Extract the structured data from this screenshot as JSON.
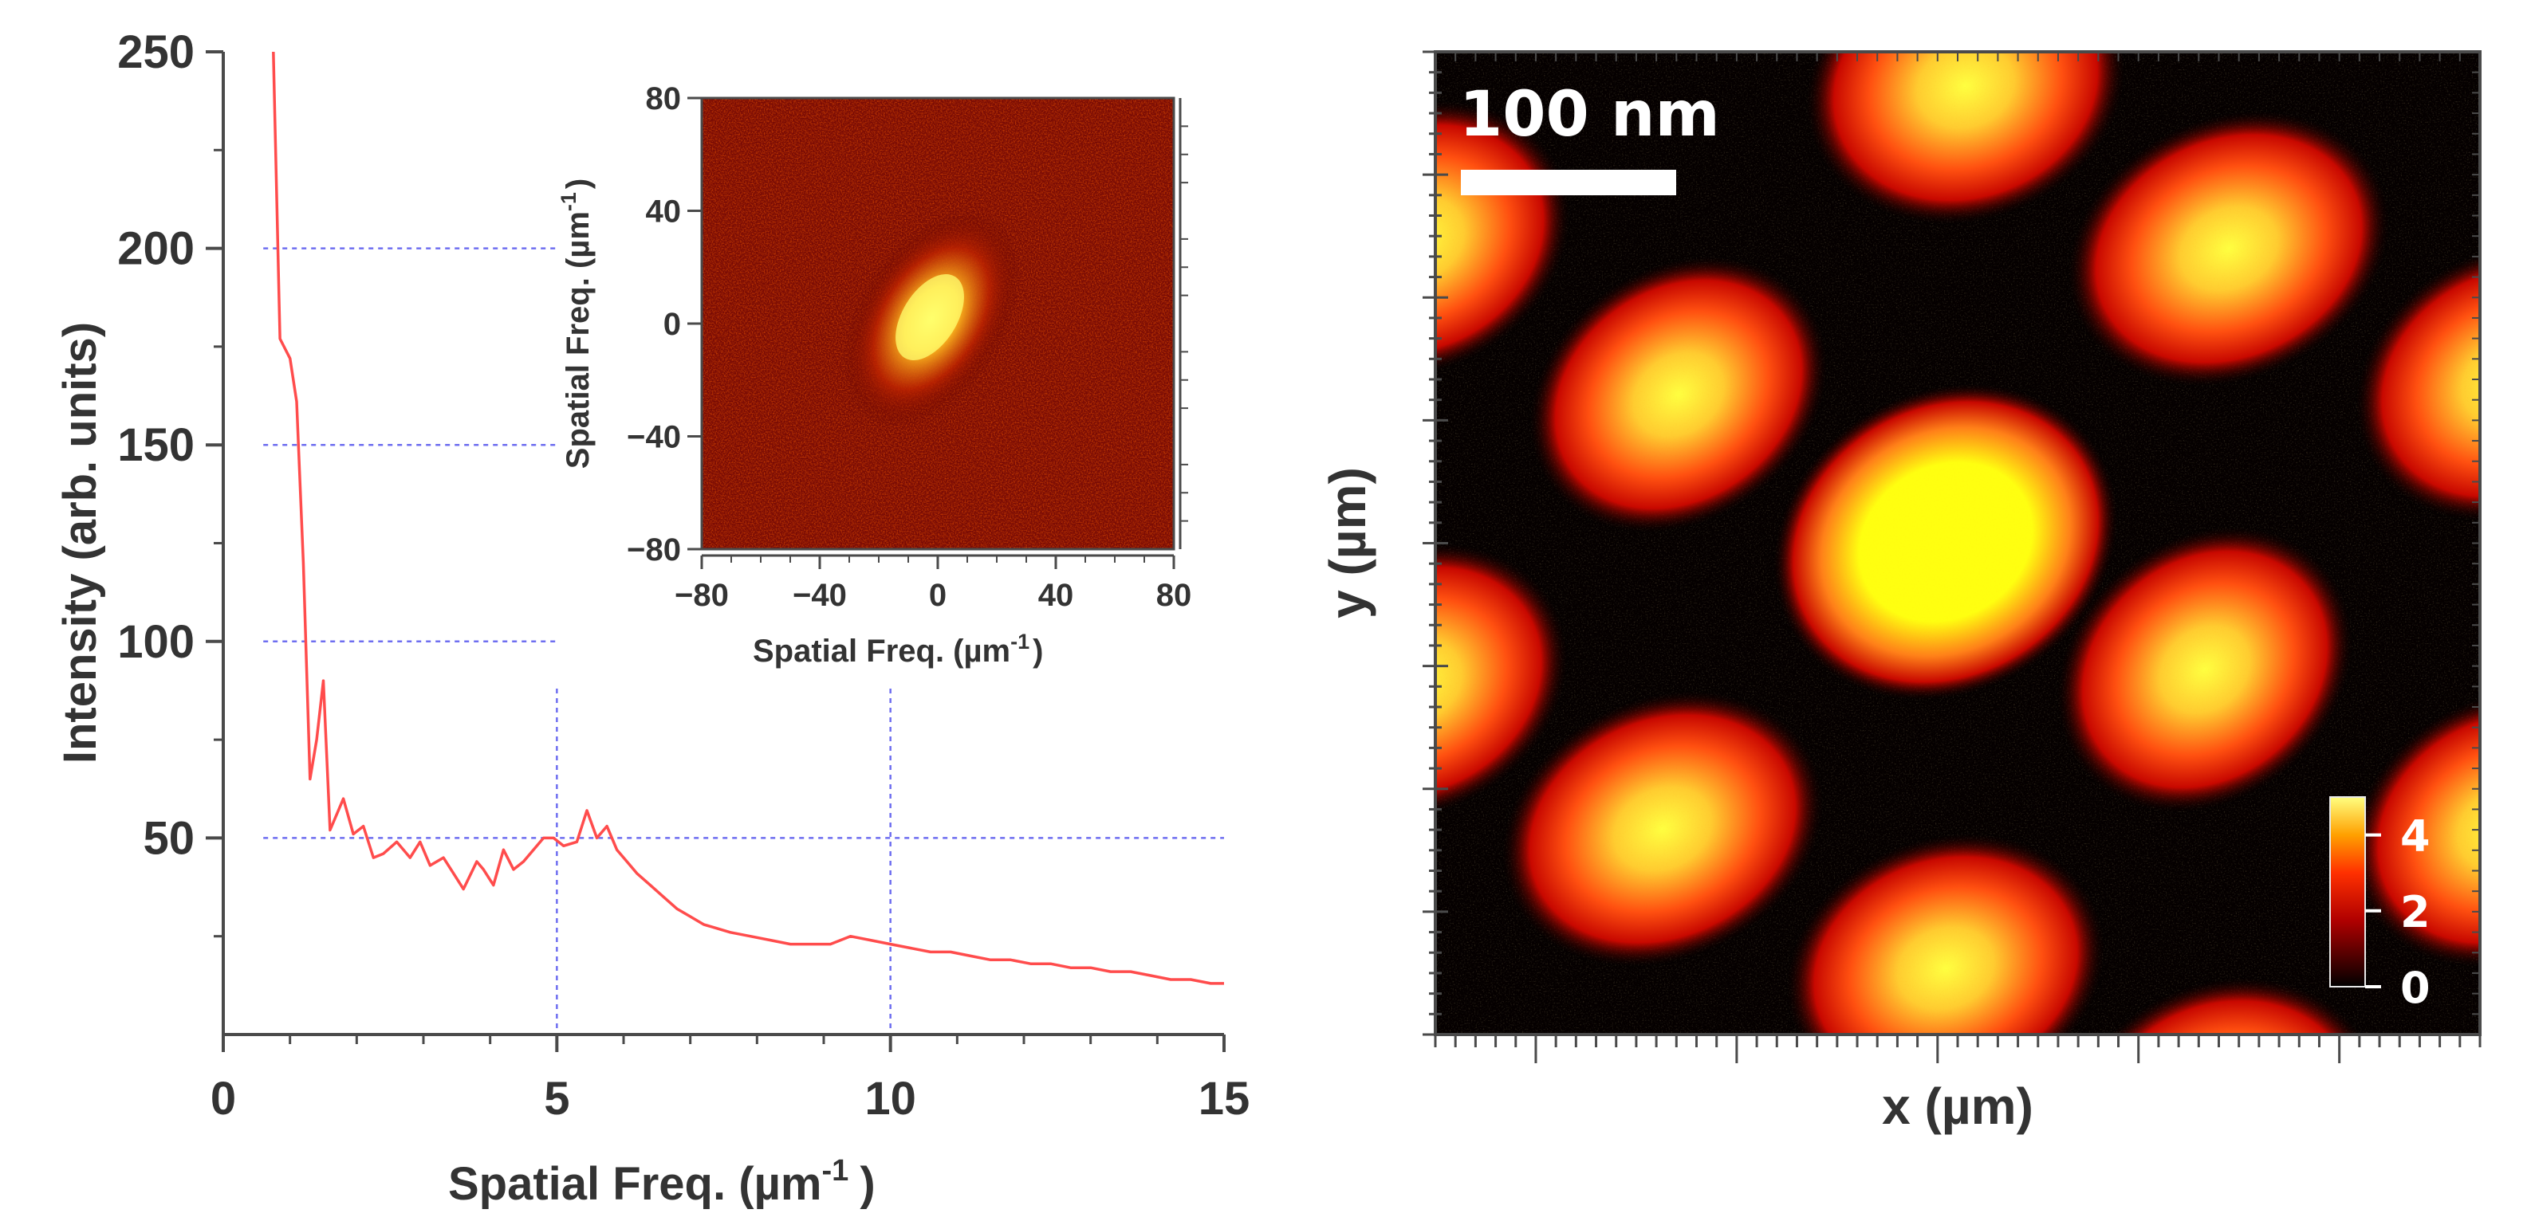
{
  "chart_data": [
    {
      "type": "line",
      "name": "spectrum",
      "xlabel_main": "Spatial Freq. (µm",
      "xlabel_sup": "-1",
      "xlabel_close": ")",
      "ylabel": "Intensity (arb. units)",
      "xlim": [
        0,
        15
      ],
      "ylim": [
        0,
        250
      ],
      "xticks": [
        "0",
        "5",
        "10",
        "15"
      ],
      "yticks": [
        "50",
        "100",
        "150",
        "200",
        "250"
      ],
      "grid_y": [
        50,
        100,
        150,
        200
      ],
      "grid_x": [
        5,
        10
      ],
      "line_color": "#ff4c4c",
      "grid_color": "#6e6ef0",
      "x": [
        0.75,
        0.85,
        1.0,
        1.1,
        1.2,
        1.3,
        1.4,
        1.5,
        1.6,
        1.8,
        1.95,
        2.1,
        2.25,
        2.4,
        2.6,
        2.8,
        2.95,
        3.1,
        3.3,
        3.45,
        3.6,
        3.8,
        3.9,
        4.05,
        4.2,
        4.35,
        4.5,
        4.65,
        4.8,
        4.95,
        5.1,
        5.3,
        5.45,
        5.6,
        5.75,
        5.9,
        6.05,
        6.2,
        6.4,
        6.6,
        6.8,
        7.0,
        7.2,
        7.4,
        7.6,
        7.9,
        8.2,
        8.5,
        8.8,
        9.1,
        9.4,
        9.7,
        10.0,
        10.3,
        10.6,
        10.9,
        11.2,
        11.5,
        11.8,
        12.1,
        12.4,
        12.7,
        13.0,
        13.3,
        13.6,
        13.9,
        14.2,
        14.5,
        14.8,
        15.0
      ],
      "y": [
        250,
        177,
        172,
        161,
        120,
        65,
        75,
        90,
        52,
        60,
        51,
        53,
        45,
        46,
        49,
        45,
        49,
        43,
        45,
        41,
        37,
        44,
        42,
        38,
        47,
        42,
        44,
        47,
        50,
        50,
        48,
        49,
        57,
        50,
        53,
        47,
        44,
        41,
        38,
        35,
        32,
        30,
        28,
        27,
        26,
        25,
        24,
        23,
        23,
        23,
        25,
        24,
        23,
        22,
        21,
        21,
        20,
        19,
        19,
        18,
        18,
        17,
        17,
        16,
        16,
        15,
        14,
        14,
        13,
        13
      ]
    },
    {
      "type": "heatmap",
      "name": "inset-fft",
      "xlabel_main": "Spatial Freq. (µm",
      "xlabel_sup": "-1",
      "xlabel_close": ")",
      "ylabel_main": "Spatial Freq. (µm",
      "ylabel_sup": "-1",
      "ylabel_close": ")",
      "xlim": [
        -80,
        80
      ],
      "ylim": [
        -80,
        80
      ],
      "xticks": [
        "−80",
        "−40",
        "0",
        "40",
        "80"
      ],
      "yticks": [
        "−80",
        "−40",
        "0",
        "40",
        "80"
      ],
      "colormap": "hot",
      "center": [
        0,
        0
      ],
      "peak_orientation": "diagonal (lower-left to upper-right)"
    },
    {
      "type": "heatmap",
      "name": "real-space-image",
      "xlabel": "x (µm)",
      "ylabel": "y (µm)",
      "scale_bar_label": "100 nm",
      "colormap": "hot",
      "colorbar_ticks": [
        "4",
        "2",
        "0"
      ],
      "colorbar_range": [
        0,
        5
      ],
      "background_color": "#050000"
    }
  ]
}
